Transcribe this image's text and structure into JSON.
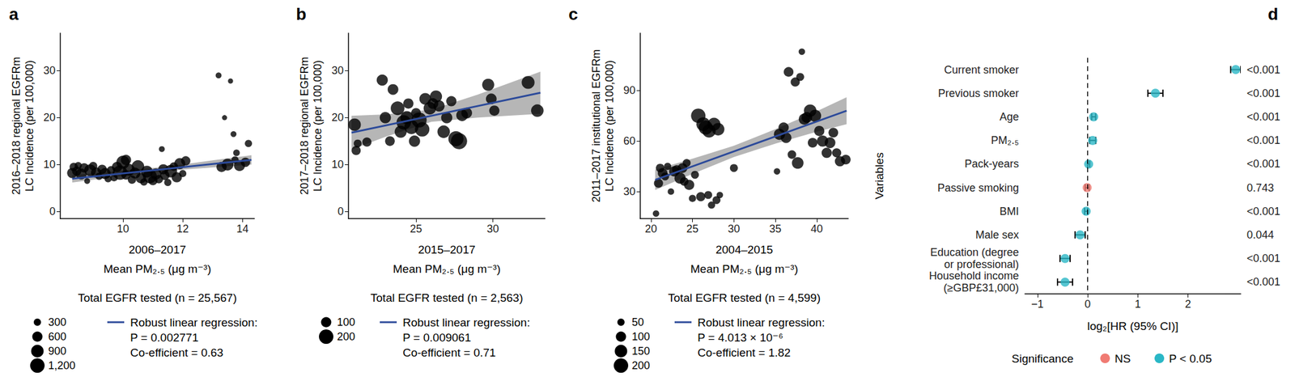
{
  "chart_data": [
    {
      "type": "scatter",
      "title": "a",
      "y_label": "2016–2018 regional EGFRm\nLC Incidence (per 100,000)",
      "x_period": "2006–2017",
      "x_label": "Mean PM₂.₅ (μg m⁻³)",
      "note": "Total EGFR tested (n = 25,567)",
      "color": "#000000",
      "grid": false,
      "xlim": [
        7.9,
        14.4
      ],
      "xticks": [
        10,
        12,
        14
      ],
      "ylim": [
        -1.5,
        38
      ],
      "yticks": [
        0,
        10,
        20,
        30
      ],
      "x": [
        8.3,
        8.35,
        8.45,
        8.5,
        8.6,
        8.7,
        8.8,
        8.9,
        9.0,
        9.1,
        9.2,
        9.3,
        9.4,
        9.5,
        9.6,
        9.7,
        9.8,
        9.9,
        10.0,
        10.1,
        10.1,
        10.2,
        10.3,
        10.4,
        10.5,
        10.6,
        10.7,
        10.8,
        10.9,
        11.0,
        11.1,
        11.2,
        11.3,
        11.35,
        11.4,
        11.5,
        11.6,
        11.7,
        11.8,
        11.9,
        12.0,
        12.1,
        13.2,
        13.3,
        13.4,
        13.5,
        13.6,
        13.7,
        13.75,
        13.8,
        13.9,
        14.1,
        14.2
      ],
      "values": [
        8.2,
        9.5,
        8.6,
        9.8,
        8.0,
        9.3,
        6.5,
        8.8,
        9.7,
        8.3,
        7.5,
        9.0,
        8.1,
        7.0,
        8.8,
        7.2,
        9.5,
        8.3,
        10.5,
        7.8,
        11.0,
        8.9,
        6.8,
        8.2,
        9.6,
        7.1,
        6.3,
        8.5,
        7.5,
        6.6,
        8.0,
        6.9,
        13.3,
        9.0,
        7.7,
        6.2,
        8.6,
        9.6,
        7.3,
        10.2,
        8.1,
        10.8,
        29.0,
        9.5,
        20.0,
        10.0,
        27.8,
        16.5,
        11.0,
        12.5,
        9.8,
        10.5,
        14.5
      ],
      "sizes": [
        600,
        400,
        500,
        300,
        700,
        500,
        200,
        800,
        400,
        600,
        300,
        500,
        700,
        300,
        400,
        300,
        600,
        1200,
        1000,
        500,
        600,
        800,
        400,
        700,
        900,
        600,
        300,
        800,
        1100,
        500,
        700,
        400,
        200,
        600,
        500,
        300,
        900,
        400,
        600,
        700,
        300,
        500,
        200,
        600,
        150,
        800,
        150,
        200,
        300,
        250,
        700,
        500,
        300
      ],
      "size_legend": [
        300,
        600,
        900,
        {
          "value": 1200,
          "label": "1,200"
        }
      ],
      "fit": {
        "name": "Robust linear regression:",
        "color": "#2c4a9a",
        "x": [
          8.3,
          14.3
        ],
        "values": [
          7.0,
          11.0
        ],
        "band_x": [
          8.3,
          10,
          11.5,
          13,
          14.3
        ],
        "band_low": [
          6.2,
          7.6,
          8.7,
          9.4,
          10.0
        ],
        "band_high": [
          7.8,
          8.7,
          9.6,
          10.9,
          12.0
        ]
      },
      "fit_stats": [
        "P = 0.002771",
        "Co-efficient = 0.63"
      ]
    },
    {
      "type": "scatter",
      "title": "b",
      "y_label": "2017–2018 regional EGFRm\nLC Incidence (per 100,000)",
      "x_period": "2015–2017",
      "x_label": "Mean PM₂.₅ (μg m⁻³)",
      "note": "Total EGFR tested (n = 2,563)",
      "color": "#000000",
      "grid": false,
      "xlim": [
        20.6,
        33.4
      ],
      "xticks": [
        25,
        30
      ],
      "ylim": [
        -1.5,
        38
      ],
      "yticks": [
        0,
        10,
        20,
        30
      ],
      "x": [
        21.0,
        21.1,
        21.2,
        21.8,
        22.8,
        23.0,
        23.3,
        23.5,
        23.8,
        24.0,
        24.2,
        24.4,
        24.5,
        24.7,
        24.9,
        25.0,
        25.2,
        25.4,
        25.6,
        25.9,
        26.1,
        26.3,
        26.5,
        26.8,
        27.0,
        27.3,
        27.6,
        27.8,
        28.0,
        28.3,
        29.7,
        29.9,
        30.1,
        32.3,
        32.9
      ],
      "values": [
        18.5,
        13.0,
        14.5,
        14.8,
        28.0,
        20.0,
        15.0,
        26.0,
        22.0,
        17.0,
        19.0,
        20.0,
        23.0,
        18.0,
        15.0,
        21.0,
        19.5,
        17.5,
        24.0,
        22.0,
        23.0,
        24.5,
        22.5,
        17.0,
        20.0,
        23.5,
        15.5,
        15.0,
        20.5,
        21.0,
        27.0,
        24.0,
        21.5,
        27.5,
        21.5
      ],
      "sizes": [
        150,
        80,
        60,
        80,
        120,
        120,
        90,
        110,
        180,
        140,
        200,
        160,
        100,
        190,
        120,
        90,
        220,
        200,
        130,
        150,
        110,
        140,
        120,
        150,
        120,
        100,
        220,
        250,
        130,
        110,
        140,
        110,
        100,
        160,
        150
      ],
      "size_legend": [
        100,
        200
      ],
      "fit": {
        "name": "Robust linear regression:",
        "color": "#2c4a9a",
        "x": [
          20.8,
          33.1
        ],
        "values": [
          16.8,
          25.3
        ],
        "band_x": [
          20.8,
          23,
          26,
          29,
          33.1
        ],
        "band_low": [
          13.2,
          15.9,
          19.1,
          20.0,
          20.8
        ],
        "band_high": [
          20.4,
          20.7,
          21.7,
          24.9,
          29.8
        ]
      },
      "fit_stats": [
        "P = 0.009061",
        "Co-efficient = 0.71"
      ]
    },
    {
      "type": "scatter",
      "title": "c",
      "y_label": "2011–2017 institutional EGFRm\nLC Incidence (per 100,000)",
      "x_period": "2004–2015",
      "x_label": "Mean PM₂.₅ (μg m⁻³)",
      "note": "Total EGFR tested (n = 4,599)",
      "color": "#000000",
      "grid": false,
      "xlim": [
        18.7,
        43.8
      ],
      "xticks": [
        20,
        25,
        30,
        35,
        40
      ],
      "ylim": [
        14,
        124
      ],
      "yticks": [
        30,
        60,
        90
      ],
      "x": [
        20.6,
        20.9,
        21.1,
        21.4,
        21.7,
        22.0,
        22.4,
        22.8,
        23.1,
        23.5,
        23.8,
        24.0,
        24.3,
        24.6,
        25.0,
        25.3,
        25.7,
        26.0,
        26.3,
        26.6,
        26.9,
        27.0,
        27.3,
        27.6,
        27.9,
        28.1,
        28.3,
        30.0,
        35.2,
        35.5,
        36.0,
        36.3,
        36.6,
        37.0,
        37.4,
        37.7,
        38.0,
        38.2,
        38.5,
        38.8,
        39.2,
        39.5,
        39.8,
        40.3,
        40.7,
        41.2,
        41.6,
        42.0,
        42.4,
        42.8,
        43.5
      ],
      "values": [
        17,
        35,
        44,
        41,
        39,
        45,
        30,
        42,
        43,
        38,
        44,
        36,
        47,
        34,
        26,
        40,
        75,
        27,
        70,
        68,
        28,
        66,
        22,
        70,
        25,
        67,
        28,
        44,
        42,
        64,
        68,
        62,
        101,
        52,
        95,
        47,
        98,
        113,
        73,
        74,
        78,
        59,
        75,
        66,
        60,
        53,
        59,
        65,
        53,
        48,
        49
      ],
      "sizes": [
        40,
        80,
        70,
        90,
        60,
        50,
        40,
        100,
        80,
        120,
        90,
        70,
        60,
        100,
        50,
        60,
        200,
        80,
        180,
        190,
        60,
        170,
        50,
        160,
        60,
        150,
        40,
        60,
        40,
        120,
        100,
        110,
        90,
        70,
        80,
        130,
        60,
        40,
        120,
        110,
        150,
        90,
        140,
        100,
        120,
        100,
        110,
        90,
        80,
        100,
        90
      ],
      "size_legend": [
        50,
        100,
        150,
        200
      ],
      "fit": {
        "name": "Robust linear regression:",
        "color": "#2c4a9a",
        "x": [
          20.5,
          43.6
        ],
        "values": [
          37,
          78
        ],
        "band_x": [
          20.5,
          25,
          30,
          35,
          40,
          43.6
        ],
        "band_low": [
          31,
          40.5,
          50.5,
          58.5,
          65.5,
          70
        ],
        "band_high": [
          43,
          49.5,
          57.2,
          67,
          77.7,
          86
        ]
      },
      "fit_stats": [
        "P = 4.013 × 10⁻⁶",
        "Co-efficient = 1.82"
      ]
    },
    {
      "type": "forest",
      "title": "d",
      "y_label": "Variables",
      "x_label": "log₂[HR (95% CI)]",
      "grid": false,
      "xlim": [
        -1.25,
        3.05
      ],
      "xticks": [
        {
          "value": -1,
          "label": "−1"
        },
        0,
        1,
        2
      ],
      "reference_line": 0,
      "categories": [
        "Current smoker",
        "Previous smoker",
        "Age",
        "PM₂.₅",
        "Pack-years",
        "Passive smoking",
        "BMI",
        "Male sex",
        "Education (degree\nor professional)",
        "Household income\n(≥GBP£31,000)"
      ],
      "values": [
        2.95,
        1.35,
        0.12,
        0.1,
        0.02,
        -0.01,
        -0.03,
        -0.15,
        -0.45,
        -0.45
      ],
      "ci_low": [
        2.85,
        1.2,
        0.08,
        0.04,
        0.0,
        -0.05,
        -0.06,
        -0.25,
        -0.55,
        -0.6
      ],
      "ci_high": [
        3.05,
        1.5,
        0.16,
        0.16,
        0.04,
        0.03,
        0.0,
        -0.05,
        -0.35,
        -0.3
      ],
      "p_values": [
        "<0.001",
        "<0.001",
        "<0.001",
        "<0.001",
        "<0.001",
        "0.743",
        "<0.001",
        "0.044",
        "<0.001",
        "<0.001"
      ],
      "significance": [
        "P < 0.05",
        "P < 0.05",
        "P < 0.05",
        "P < 0.05",
        "P < 0.05",
        "NS",
        "P < 0.05",
        "P < 0.05",
        "P < 0.05",
        "P < 0.05"
      ],
      "legend_title": "Significance",
      "series": [
        {
          "name": "NS",
          "color": "#f07b73"
        },
        {
          "name": "P < 0.05",
          "color": "#2ab7c6"
        }
      ]
    }
  ]
}
